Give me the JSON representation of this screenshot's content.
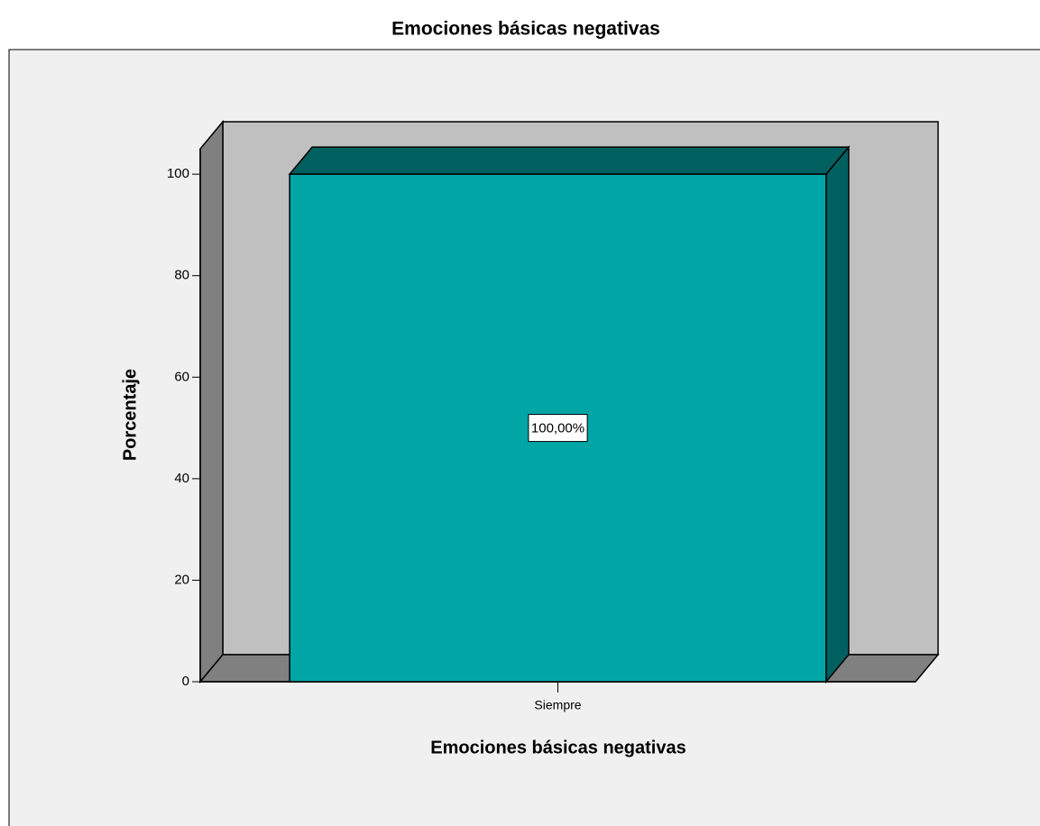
{
  "chart_data": {
    "type": "bar",
    "title": "Emociones básicas negativas",
    "x_label": "Emociones básicas negativas",
    "y_label": "Porcentaje",
    "categories": [
      "Siempre"
    ],
    "values": [
      100
    ],
    "value_labels": [
      "100,00%"
    ],
    "color": "#00a6a6",
    "ylim": [
      0,
      105
    ],
    "yticks": [
      0,
      20,
      40,
      60,
      80,
      100
    ]
  }
}
